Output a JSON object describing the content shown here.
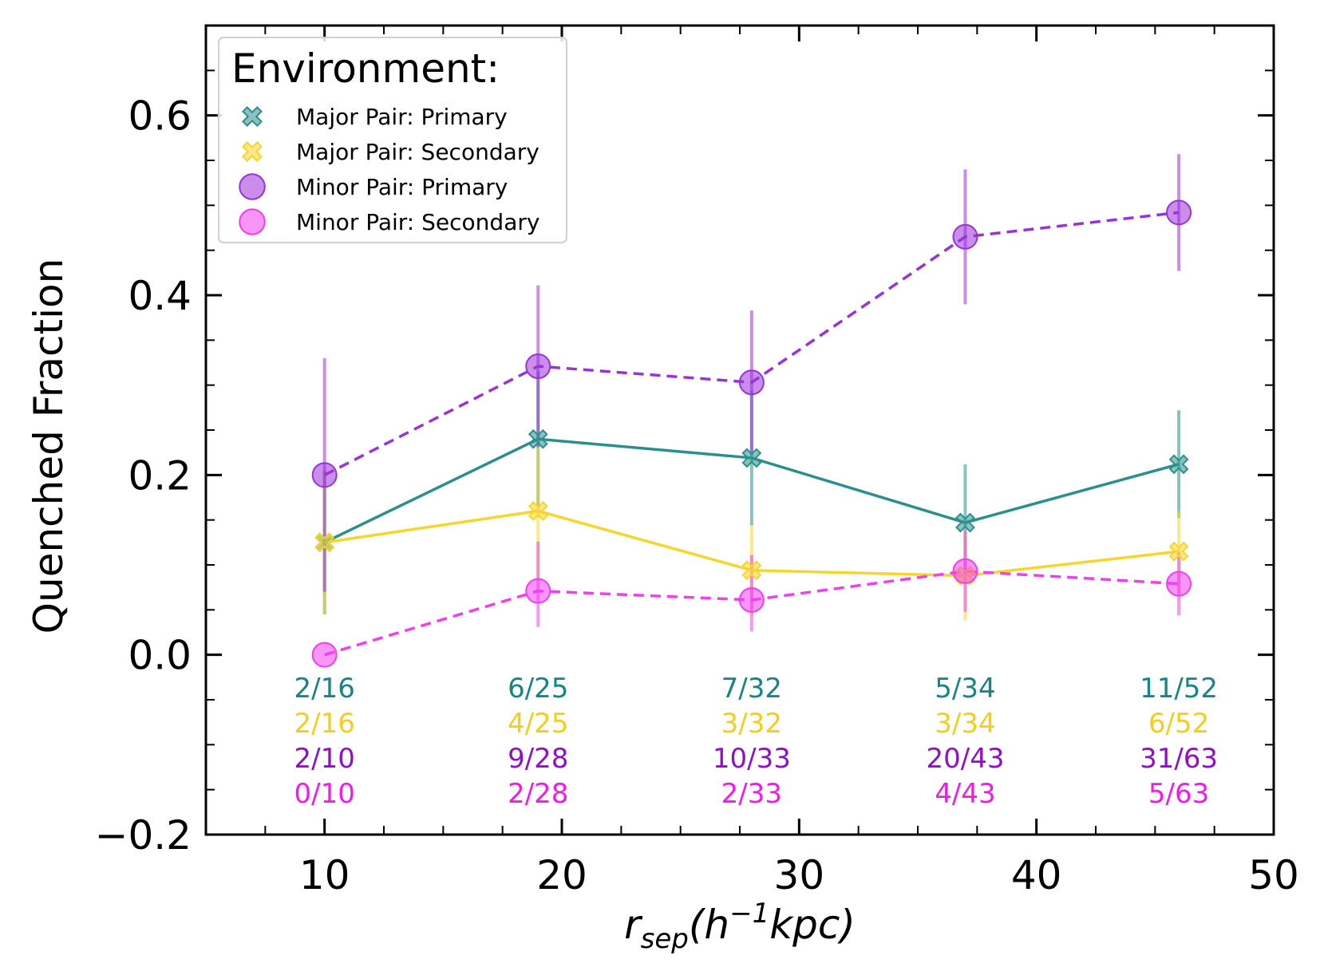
{
  "chart_data": {
    "type": "line",
    "xlabel": {
      "main": "r",
      "sub": "sep",
      "paren": "(h",
      "sup": "−1",
      "unit": "kpc)"
    },
    "ylabel": "Quenched Fraction",
    "xlim": [
      5,
      50
    ],
    "ylim": [
      -0.2,
      0.7
    ],
    "x_ticks": [
      10,
      20,
      30,
      40,
      50
    ],
    "x_tick_labels": [
      "10",
      "20",
      "30",
      "40",
      "50"
    ],
    "y_ticks": [
      -0.2,
      0.0,
      0.2,
      0.4,
      0.6
    ],
    "y_tick_labels": [
      "−0.2",
      "0.0",
      "0.2",
      "0.4",
      "0.6"
    ],
    "grid": false,
    "legend": {
      "title": "Environment:",
      "placement": "top-left"
    },
    "x": [
      10,
      19,
      28,
      37,
      46
    ],
    "series": [
      {
        "name": "Major Pair: Primary",
        "color": "#2b8f8c",
        "marker": "x",
        "line": "solid",
        "values": [
          0.125,
          0.24,
          0.219,
          0.147,
          0.212
        ],
        "err_lo": [
          0.08,
          0.075,
          0.075,
          0.06,
          0.06
        ],
        "err_hi": [
          0.08,
          0.075,
          0.075,
          0.065,
          0.06
        ],
        "counts": [
          "2/16",
          "6/25",
          "7/32",
          "5/34",
          "11/52"
        ]
      },
      {
        "name": "Major Pair: Secondary",
        "color": "#f8d52c",
        "marker": "x",
        "line": "solid",
        "values": [
          0.125,
          0.16,
          0.094,
          0.088,
          0.115
        ],
        "err_lo": [
          0.08,
          0.075,
          0.05,
          0.05,
          0.045
        ],
        "err_hi": [
          0.08,
          0.075,
          0.05,
          0.05,
          0.045
        ],
        "counts": [
          "2/16",
          "4/25",
          "3/32",
          "3/34",
          "6/52"
        ]
      },
      {
        "name": "Minor Pair: Primary",
        "color": "#9b31d8",
        "marker": "o",
        "line": "dashed",
        "values": [
          0.2,
          0.321,
          0.303,
          0.465,
          0.492
        ],
        "err_lo": [
          0.13,
          0.09,
          0.08,
          0.075,
          0.065
        ],
        "err_hi": [
          0.13,
          0.09,
          0.08,
          0.075,
          0.065
        ],
        "counts": [
          "2/10",
          "9/28",
          "10/33",
          "20/43",
          "31/63"
        ]
      },
      {
        "name": "Minor Pair: Secondary",
        "color": "#f13ef3",
        "marker": "o",
        "line": "dashed",
        "values": [
          0.0,
          0.071,
          0.061,
          0.093,
          0.079
        ],
        "err_lo": [
          0.0,
          0.04,
          0.035,
          0.045,
          0.035
        ],
        "err_hi": [
          0.0,
          0.055,
          0.05,
          0.045,
          0.035
        ],
        "counts": [
          "0/10",
          "2/28",
          "2/33",
          "4/43",
          "5/63"
        ]
      }
    ],
    "count_colors": [
      "#168583",
      "#f3cf19",
      "#8f10c6",
      "#f218ee"
    ]
  }
}
